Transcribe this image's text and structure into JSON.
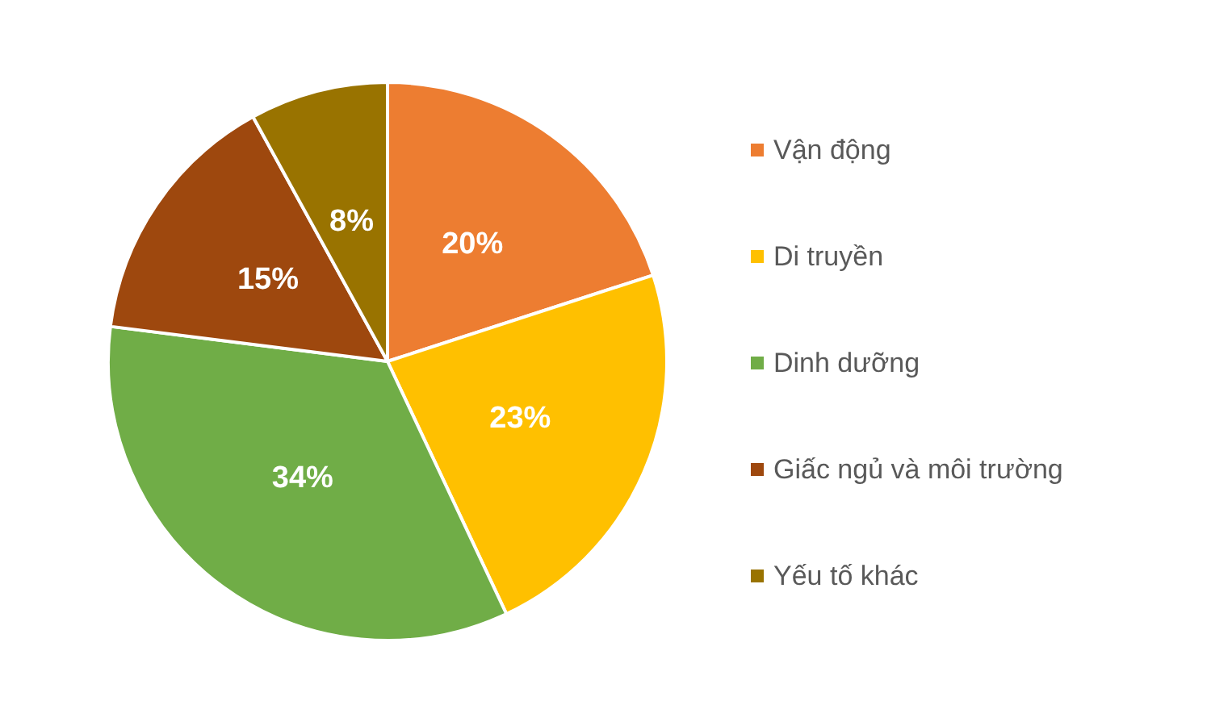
{
  "chart_data": {
    "type": "pie",
    "categories": [
      "Vận động",
      "Di truyền",
      "Dinh dưỡng",
      "Giấc ngủ và môi trường",
      "Yếu tố khác"
    ],
    "values": [
      20,
      23,
      34,
      15,
      8
    ],
    "colors": [
      "#ed7d31",
      "#ffc000",
      "#70ad47",
      "#9e480e",
      "#997300"
    ],
    "value_labels": [
      "20%",
      "23%",
      "34%",
      "15%",
      "8%"
    ],
    "legend": "right"
  }
}
